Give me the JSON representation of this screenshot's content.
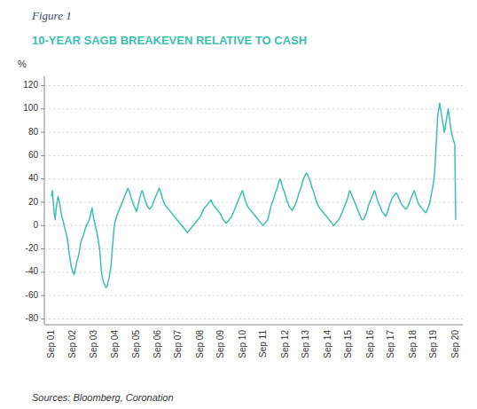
{
  "chart_data": {
    "type": "line",
    "title": "10-YEAR SAGB BREAKEVEN RELATIVE TO CASH",
    "y_label": "%",
    "annotations": [
      "Figure 1",
      "Sources: Bloomberg, Coronation"
    ],
    "color": "#3dbfaf",
    "grid": true,
    "ylim": [
      -85,
      128
    ],
    "yticks": [
      -80,
      -60,
      -40,
      -20,
      0,
      20,
      40,
      60,
      80,
      100,
      120
    ],
    "categories": [
      "Sep 01",
      null,
      null,
      null,
      null,
      null,
      null,
      null,
      null,
      null,
      null,
      null,
      null,
      null,
      null,
      null,
      null,
      null,
      null,
      null,
      null,
      null,
      null,
      "Sep 02",
      null,
      null,
      null,
      null,
      null,
      null,
      null,
      null,
      null,
      null,
      null,
      null,
      null,
      null,
      null,
      null,
      null,
      null,
      null,
      null,
      null,
      "Sep 03",
      null,
      null,
      null,
      null,
      null,
      null,
      null,
      null,
      null,
      null,
      null,
      null,
      null,
      null,
      null,
      null,
      null,
      null,
      null,
      null,
      null,
      null,
      "Sep 04",
      null,
      null,
      null,
      null,
      null,
      null,
      null,
      null,
      null,
      null,
      null,
      null,
      null,
      null,
      null,
      null,
      null,
      null,
      null,
      null,
      null,
      "Sep 05",
      null,
      null,
      null,
      null,
      null,
      null,
      null,
      null,
      null,
      null,
      null,
      null,
      null,
      null,
      null,
      null,
      null,
      null,
      null,
      null,
      null,
      null,
      "Sep 06",
      null,
      null,
      null,
      null,
      null,
      null,
      null,
      null,
      null,
      null,
      null,
      null,
      null,
      null,
      null,
      null,
      null,
      null,
      null,
      null,
      null,
      "Sep 07",
      null,
      null,
      null,
      null,
      null,
      null,
      null,
      null,
      null,
      null,
      null,
      null,
      null,
      null,
      null,
      null,
      null,
      null,
      null,
      null,
      null,
      null,
      "Sep 08",
      null,
      null,
      null,
      null,
      null,
      null,
      null,
      null,
      null,
      null,
      null,
      null,
      null,
      null,
      null,
      null,
      null,
      null,
      null,
      null,
      null,
      "Sep 09",
      null,
      null,
      null,
      null,
      null,
      null,
      null,
      null,
      null,
      null,
      null,
      null,
      null,
      null,
      null,
      null,
      null,
      null,
      null,
      null,
      null,
      null,
      "Sep 10",
      null,
      null,
      null,
      null,
      null,
      null,
      null,
      null,
      null,
      null,
      null,
      null,
      null,
      null,
      null,
      null,
      null,
      null,
      null,
      null,
      null,
      "Sep 11",
      null,
      null,
      null,
      null,
      null,
      null,
      null,
      null,
      null,
      null,
      null,
      null,
      null,
      null,
      null,
      null,
      null,
      null,
      null,
      null,
      null,
      null,
      "Sep 12",
      null,
      null,
      null,
      null,
      null,
      null,
      null,
      null,
      null,
      null,
      null,
      null,
      null,
      null,
      null,
      null,
      null,
      null,
      null,
      null,
      null,
      "Sep 13",
      null,
      null,
      null,
      null,
      null,
      null,
      null,
      null,
      null,
      null,
      null,
      null,
      null,
      null,
      null,
      null,
      null,
      null,
      null,
      null,
      null,
      null,
      "Sep 14",
      null,
      null,
      null,
      null,
      null,
      null,
      null,
      null,
      null,
      null,
      null,
      null,
      null,
      null,
      null,
      null,
      null,
      null,
      null,
      null,
      null,
      "Sep 15",
      null,
      null,
      null,
      null,
      null,
      null,
      null,
      null,
      null,
      null,
      null,
      null,
      null,
      null,
      null,
      null,
      null,
      null,
      null,
      null,
      null,
      null,
      "Sep 16",
      null,
      null,
      null,
      null,
      null,
      null,
      null,
      null,
      null,
      null,
      null,
      null,
      null,
      null,
      null,
      null,
      null,
      null,
      null,
      null,
      null,
      "Sep 17",
      null,
      null,
      null,
      null,
      null,
      null,
      null,
      null,
      null,
      null,
      null,
      null,
      null,
      null,
      null,
      null,
      null,
      null,
      null,
      null,
      null,
      null,
      "Sep 18",
      null,
      null,
      null,
      null,
      null,
      null,
      null,
      null,
      null,
      null,
      null,
      null,
      null,
      null,
      null,
      null,
      null,
      null,
      null,
      null,
      null,
      "Sep 19",
      null,
      null,
      null,
      null,
      null,
      null,
      null,
      null,
      null,
      null,
      null,
      null,
      null,
      null,
      null,
      null,
      null,
      null,
      null,
      null,
      null,
      null,
      "Sep 20"
    ],
    "values": [
      25,
      30,
      20,
      10,
      5,
      15,
      20,
      25,
      22,
      18,
      12,
      8,
      5,
      2,
      -2,
      -5,
      -8,
      -12,
      -18,
      -25,
      -30,
      -35,
      -38,
      -40,
      -42,
      -38,
      -35,
      -30,
      -28,
      -25,
      -20,
      -15,
      -12,
      -10,
      -8,
      -5,
      -2,
      0,
      2,
      3,
      5,
      8,
      12,
      15,
      10,
      5,
      2,
      -2,
      -5,
      -10,
      -15,
      -20,
      -30,
      -40,
      -45,
      -48,
      -50,
      -52,
      -53,
      -52,
      -48,
      -45,
      -40,
      -35,
      -25,
      -15,
      -5,
      2,
      5,
      8,
      10,
      12,
      14,
      16,
      18,
      20,
      22,
      24,
      26,
      28,
      30,
      32,
      30,
      28,
      25,
      22,
      20,
      18,
      16,
      14,
      12,
      15,
      18,
      22,
      25,
      28,
      30,
      28,
      25,
      22,
      20,
      18,
      16,
      15,
      14,
      15,
      16,
      18,
      20,
      22,
      24,
      26,
      28,
      30,
      32,
      30,
      28,
      25,
      22,
      20,
      18,
      17,
      16,
      15,
      14,
      13,
      12,
      11,
      10,
      9,
      8,
      7,
      6,
      5,
      4,
      3,
      2,
      1,
      0,
      -1,
      -2,
      -3,
      -4,
      -5,
      -6,
      -5,
      -4,
      -3,
      -2,
      -1,
      0,
      1,
      2,
      3,
      4,
      5,
      6,
      7,
      8,
      10,
      12,
      14,
      15,
      16,
      17,
      18,
      19,
      20,
      21,
      22,
      20,
      18,
      17,
      16,
      15,
      14,
      13,
      12,
      11,
      10,
      8,
      6,
      5,
      4,
      3,
      2,
      3,
      4,
      5,
      6,
      7,
      8,
      10,
      12,
      14,
      16,
      18,
      20,
      22,
      24,
      26,
      28,
      30,
      28,
      25,
      22,
      20,
      18,
      16,
      15,
      14,
      13,
      12,
      11,
      10,
      9,
      8,
      7,
      6,
      5,
      4,
      3,
      2,
      1,
      0,
      1,
      2,
      3,
      4,
      5,
      8,
      12,
      15,
      18,
      20,
      22,
      25,
      28,
      30,
      32,
      35,
      38,
      40,
      38,
      35,
      32,
      30,
      28,
      25,
      22,
      20,
      18,
      16,
      15,
      14,
      13,
      15,
      16,
      18,
      20,
      22,
      25,
      28,
      30,
      32,
      35,
      38,
      40,
      42,
      44,
      45,
      44,
      42,
      40,
      38,
      35,
      32,
      30,
      28,
      25,
      22,
      20,
      18,
      16,
      15,
      14,
      13,
      12,
      11,
      10,
      9,
      8,
      7,
      6,
      5,
      4,
      3,
      2,
      1,
      0,
      1,
      2,
      3,
      4,
      5,
      6,
      8,
      10,
      12,
      14,
      16,
      18,
      20,
      22,
      25,
      28,
      30,
      28,
      26,
      24,
      22,
      20,
      18,
      16,
      14,
      12,
      10,
      8,
      6,
      5,
      5,
      6,
      8,
      10,
      12,
      15,
      18,
      20,
      22,
      24,
      26,
      28,
      30,
      28,
      25,
      22,
      20,
      18,
      16,
      14,
      12,
      11,
      10,
      9,
      8,
      10,
      12,
      15,
      18,
      20,
      22,
      24,
      25,
      26,
      27,
      28,
      27,
      25,
      23,
      21,
      19,
      18,
      17,
      16,
      15,
      14,
      15,
      16,
      18,
      20,
      22,
      24,
      26,
      28,
      30,
      28,
      25,
      22,
      20,
      18,
      17,
      16,
      15,
      14,
      13,
      12,
      11,
      12,
      14,
      16,
      18,
      22,
      26,
      30,
      35,
      40,
      50,
      65,
      80,
      95,
      100,
      105,
      100,
      95,
      90,
      85,
      80,
      85,
      90,
      95,
      100,
      95,
      88,
      82,
      78,
      75,
      72,
      70,
      5
    ]
  }
}
